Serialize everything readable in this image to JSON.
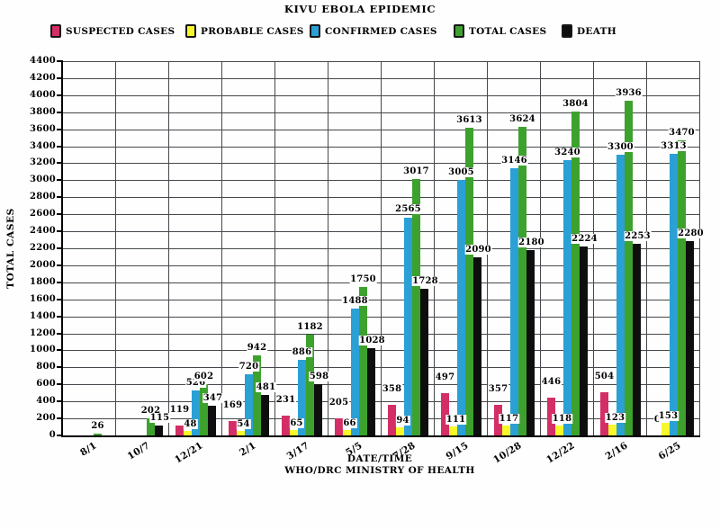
{
  "title": "KIVU EBOLA EPIDEMIC",
  "y_axis_title": "TOTAL CASES",
  "x_axis_title": "DATE/TIME",
  "source": "WHO/DRC MINISTRY OF HEALTH",
  "colors": {
    "suspected": "#d42e66",
    "probable": "#f7f72a",
    "confirmed": "#2aa0d5",
    "total": "#3da12d",
    "death": "#0e0e0e",
    "grid": "#45484c",
    "axis": "#000000",
    "label_bg": "#ffffff"
  },
  "chart_data": {
    "type": "bar",
    "title": "KIVU EBOLA EPIDEMIC",
    "xlabel": "DATE/TIME",
    "ylabel": "TOTAL CASES",
    "source": "WHO/DRC MINISTRY OF HEALTH",
    "ylim": [
      0,
      4400
    ],
    "ytick_step": 200,
    "grid": true,
    "legend_position": "top",
    "categories": [
      "8/1",
      "10/7",
      "12/21",
      "2/1",
      "3/17",
      "5/5",
      "7/28",
      "9/15",
      "10/28",
      "12/22",
      "2/16",
      "6/25"
    ],
    "series": [
      {
        "name": "SUSPECTED CASES",
        "color": "#d42e66",
        "values": [
          null,
          null,
          119,
          169,
          231,
          205,
          358,
          497,
          357,
          446,
          504,
          0
        ]
      },
      {
        "name": "PROBABLE CASES",
        "color": "#f7f72a",
        "values": [
          null,
          null,
          48,
          54,
          65,
          66,
          94,
          111,
          117,
          118,
          123,
          153
        ]
      },
      {
        "name": "CONFIRMED CASES",
        "color": "#2aa0d5",
        "values": [
          null,
          null,
          526,
          720,
          886,
          1488,
          2565,
          3005,
          3146,
          3240,
          3300,
          3313
        ]
      },
      {
        "name": "TOTAL CASES",
        "color": "#3da12d",
        "values": [
          26,
          202,
          602,
          942,
          1182,
          1750,
          3017,
          3613,
          3624,
          3804,
          3936,
          3470
        ]
      },
      {
        "name": "DEATH",
        "color": "#0e0e0e",
        "values": [
          null,
          115,
          347,
          481,
          598,
          1028,
          1728,
          2090,
          2180,
          2224,
          2253,
          2280
        ]
      }
    ]
  },
  "legend_left_positions": [
    56,
    206,
    344,
    504,
    624
  ]
}
